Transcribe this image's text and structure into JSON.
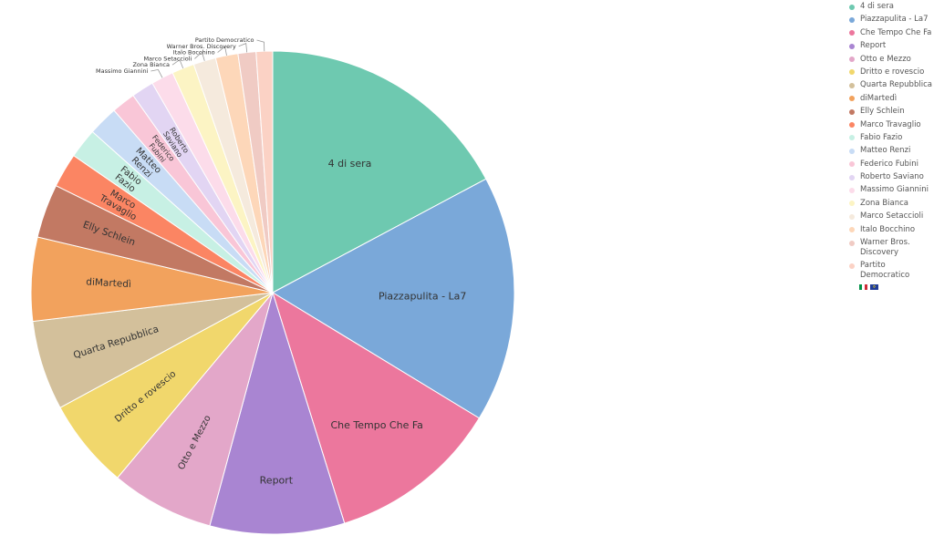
{
  "chart_data": {
    "type": "pie",
    "title": "",
    "legend_position": "right",
    "slices": [
      {
        "label": "4 di sera",
        "value": 17.2,
        "color": "#6ec9b0"
      },
      {
        "label": "Piazzapulita - La7",
        "value": 16.5,
        "color": "#7aa8d9"
      },
      {
        "label": "Che Tempo Che Fa",
        "value": 11.5,
        "color": "#ec779d"
      },
      {
        "label": "Report",
        "value": 9.0,
        "color": "#a985d2"
      },
      {
        "label": "Otto e Mezzo",
        "value": 6.9,
        "color": "#e3a7c9"
      },
      {
        "label": "Dritto e rovescio",
        "value": 6.0,
        "color": "#f1d76c"
      },
      {
        "label": "Quarta Repubblica",
        "value": 6.0,
        "color": "#d3c09b"
      },
      {
        "label": "diMartedì",
        "value": 5.6,
        "color": "#f2a25d"
      },
      {
        "label": "Elly Schlein",
        "value": 3.6,
        "color": "#c27963"
      },
      {
        "label": "Marco Travaglio",
        "value": 2.3,
        "color": "#fb8563"
      },
      {
        "label": "Fabio Fazio",
        "value": 2.0,
        "color": "#c7f0e4"
      },
      {
        "label": "Matteo Renzi",
        "value": 2.0,
        "color": "#c8dcf5"
      },
      {
        "label": "Federico Fubini",
        "value": 1.6,
        "color": "#f9c6d7"
      },
      {
        "label": "Roberto Saviano",
        "value": 1.5,
        "color": "#e2d5f3"
      },
      {
        "label": "Massimo Giannini",
        "value": 1.5,
        "color": "#fcdcea"
      },
      {
        "label": "Zona Bianca",
        "value": 1.5,
        "color": "#fcf4c4"
      },
      {
        "label": "Marco Setaccioli",
        "value": 1.5,
        "color": "#f5eadd"
      },
      {
        "label": "Italo Bocchino",
        "value": 1.5,
        "color": "#fdd7b9"
      },
      {
        "label": "Warner Bros. Discovery",
        "value": 1.2,
        "color": "#f0cbc4"
      },
      {
        "label": "Partito Democratico",
        "value": 1.1,
        "color": "#fbd2c5"
      }
    ]
  },
  "legend": {
    "items": [
      {
        "label": "4 di sera",
        "color": "#6ec9b0"
      },
      {
        "label": "Piazzapulita - La7",
        "color": "#7aa8d9"
      },
      {
        "label": "Che Tempo Che Fa",
        "color": "#ec779d"
      },
      {
        "label": "Report",
        "color": "#a985d2"
      },
      {
        "label": "Otto e Mezzo",
        "color": "#e3a7c9"
      },
      {
        "label": "Dritto e rovescio",
        "color": "#f1d76c"
      },
      {
        "label": "Quarta Repubblica",
        "color": "#d3c09b"
      },
      {
        "label": "diMartedì",
        "color": "#f2a25d"
      },
      {
        "label": "Elly Schlein",
        "color": "#c27963"
      },
      {
        "label": "Marco Travaglio",
        "color": "#fb8563"
      },
      {
        "label": "Fabio Fazio",
        "color": "#c7f0e4"
      },
      {
        "label": "Matteo Renzi",
        "color": "#c8dcf5"
      },
      {
        "label": "Federico Fubini",
        "color": "#f9c6d7"
      },
      {
        "label": "Roberto Saviano",
        "color": "#e2d5f3"
      },
      {
        "label": "Massimo Giannini",
        "color": "#fcdcea"
      },
      {
        "label": "Zona Bianca",
        "color": "#fcf4c4"
      },
      {
        "label": "Marco Setaccioli",
        "color": "#f5eadd"
      },
      {
        "label": "Italo Bocchino",
        "color": "#fdd7b9"
      },
      {
        "label": "Warner Bros. Discovery",
        "color": "#f0cbc4"
      },
      {
        "label": "Partito Democratico",
        "color": "#fbd2c5"
      }
    ],
    "flag_icons": [
      "italy-flag-icon",
      "eu-flag-icon"
    ]
  }
}
